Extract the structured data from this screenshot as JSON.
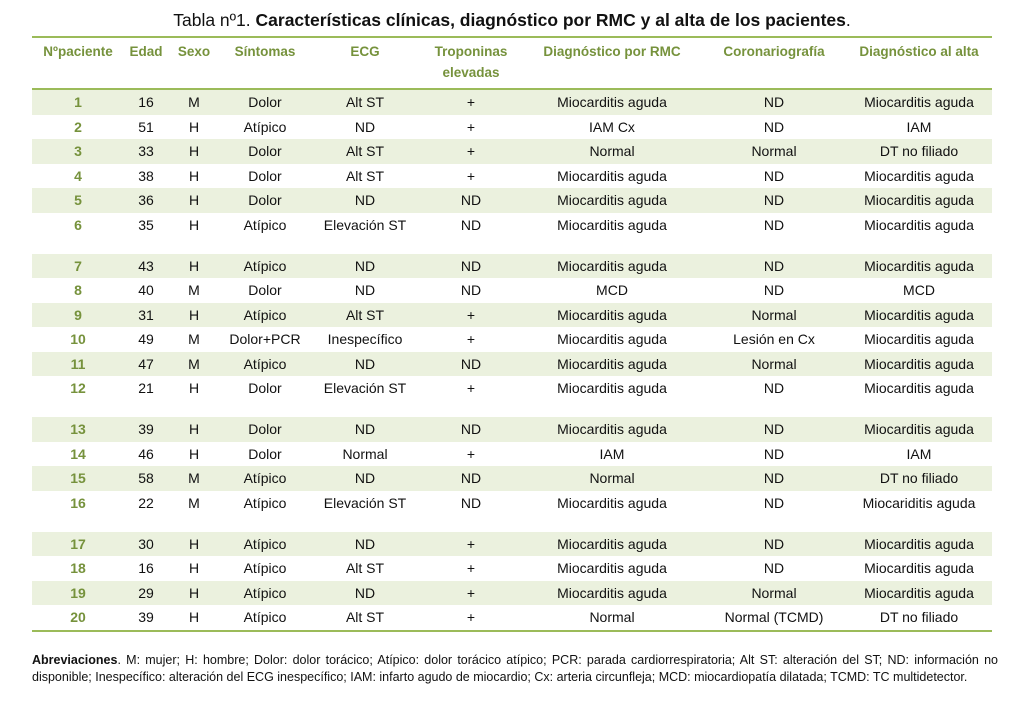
{
  "title": {
    "prefix": "Tabla nº1. ",
    "bold": "Características clínicas, diagnóstico por RMC  y al alta de los pacientes",
    "suffix": "."
  },
  "table": {
    "headers": [
      "Nºpaciente",
      "Edad",
      "Sexo",
      "Síntomas",
      "ECG",
      "Troponinas elevadas",
      "Diagnóstico por RMC",
      "Coronariografía",
      "Diagnóstico al alta"
    ],
    "rows": [
      [
        "1",
        "16",
        "M",
        "Dolor",
        "Alt ST",
        "+",
        "Miocarditis aguda",
        "ND",
        "Miocarditis aguda"
      ],
      [
        "2",
        "51",
        "H",
        "Atípico",
        "ND",
        "+",
        "IAM Cx",
        "ND",
        "IAM"
      ],
      [
        "3",
        "33",
        "H",
        "Dolor",
        "Alt ST",
        "+",
        "Normal",
        "Normal",
        "DT no filiado"
      ],
      [
        "4",
        "38",
        "H",
        "Dolor",
        "Alt ST",
        "+",
        "Miocarditis aguda",
        "ND",
        "Miocarditis aguda"
      ],
      [
        "5",
        "36",
        "H",
        "Dolor",
        "ND",
        "ND",
        "Miocarditis aguda",
        "ND",
        "Miocarditis aguda"
      ],
      [
        "6",
        "35",
        "H",
        "Atípico",
        "Elevación ST",
        "ND",
        "Miocarditis aguda",
        "ND",
        "Miocarditis aguda"
      ],
      [
        "7",
        "43",
        "H",
        "Atípico",
        "ND",
        "ND",
        "Miocarditis aguda",
        "ND",
        "Miocarditis aguda"
      ],
      [
        "8",
        "40",
        "M",
        "Dolor",
        "ND",
        "ND",
        "MCD",
        "ND",
        "MCD"
      ],
      [
        "9",
        "31",
        "H",
        "Atípico",
        "Alt ST",
        "+",
        "Miocarditis aguda",
        "Normal",
        "Miocarditis aguda"
      ],
      [
        "10",
        "49",
        "M",
        "Dolor+PCR",
        "Inespecífico",
        "+",
        "Miocarditis aguda",
        "Lesión en Cx",
        "Miocarditis aguda"
      ],
      [
        "11",
        "47",
        "M",
        "Atípico",
        "ND",
        "ND",
        "Miocarditis aguda",
        "Normal",
        "Miocarditis aguda"
      ],
      [
        "12",
        "21",
        "H",
        "Dolor",
        "Elevación ST",
        "+",
        "Miocarditis aguda",
        "ND",
        "Miocarditis aguda"
      ],
      [
        "13",
        "39",
        "H",
        "Dolor",
        "ND",
        "ND",
        "Miocarditis aguda",
        "ND",
        "Miocarditis aguda"
      ],
      [
        "14",
        "46",
        "H",
        "Dolor",
        "Normal",
        "+",
        "IAM",
        "ND",
        "IAM"
      ],
      [
        "15",
        "58",
        "M",
        "Atípico",
        "ND",
        "ND",
        "Normal",
        "ND",
        "DT no filiado"
      ],
      [
        "16",
        "22",
        "M",
        "Atípico",
        "Elevación ST",
        "ND",
        "Miocarditis aguda",
        "ND",
        "Miocariditis aguda"
      ],
      [
        "17",
        "30",
        "H",
        "Atípico",
        "ND",
        "+",
        "Miocarditis aguda",
        "ND",
        "Miocarditis aguda"
      ],
      [
        "18",
        "16",
        "H",
        "Atípico",
        "Alt ST",
        "+",
        "Miocarditis aguda",
        "ND",
        "Miocarditis aguda"
      ],
      [
        "19",
        "29",
        "H",
        "Atípico",
        "ND",
        "+",
        "Miocarditis aguda",
        "Normal",
        "Miocarditis aguda"
      ],
      [
        "20",
        "39",
        "H",
        "Atípico",
        "Alt ST",
        "+",
        "Normal",
        "Normal (TCMD)",
        "DT no filiado"
      ]
    ]
  },
  "footnote": {
    "label": "Abreviaciones",
    "text": ". M: mujer; H: hombre; Dolor: dolor torácico; Atípico: dolor torácico atípico; PCR: parada cardiorrespiratoria; Alt ST: alteración del ST; ND: información no disponible; Inespecífico: alteración del ECG inespecífico; IAM: infarto agudo de miocardio; Cx: arteria circunfleja; MCD: miocardiopatía dilatada; TCMD: TC multidetector."
  },
  "colors": {
    "accent": "#76923c",
    "rule": "#9bbb59",
    "row_shade": "#ebf1de"
  }
}
